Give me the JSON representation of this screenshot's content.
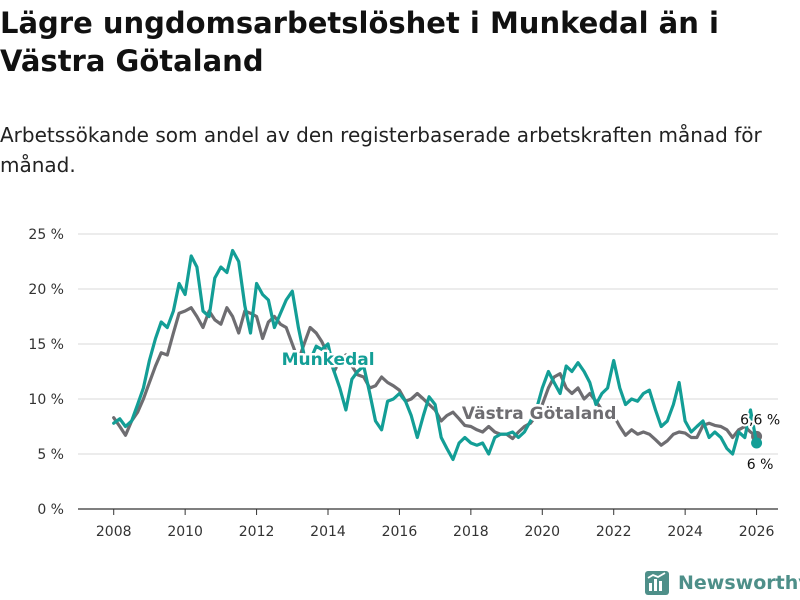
{
  "title": "Lägre ungdomsarbetslöshet i Munkedal än i Västra Götaland",
  "subtitle": "Arbetssökande som andel av den registerbaserade arbetskraften månad för månad.",
  "brand": {
    "name": "Newsworthy",
    "icon": "newsworthy-logo-icon",
    "color": "#4e8f89"
  },
  "colors": {
    "munkedal": "#139e96",
    "vastra": "#6e6d71",
    "grid": "#d9d9d9",
    "axis": "#333333"
  },
  "chart_data": {
    "type": "line",
    "title": "Lägre ungdomsarbetslöshet i Munkedal än i Västra Götaland",
    "xlabel": "",
    "ylabel": "",
    "xlim": [
      2007,
      2026.6
    ],
    "ylim": [
      0,
      25
    ],
    "x_ticks": [
      2008,
      2010,
      2012,
      2014,
      2016,
      2018,
      2020,
      2022,
      2024,
      2026
    ],
    "x_tick_labels": [
      "2008",
      "2010",
      "2012",
      "2014",
      "2016",
      "2018",
      "2020",
      "2022",
      "2024",
      "2026"
    ],
    "y_ticks": [
      0,
      5,
      10,
      15,
      20,
      25
    ],
    "y_tick_labels": [
      "0 %",
      "5 %",
      "10 %",
      "15 %",
      "20 %",
      "25 %"
    ],
    "series": [
      {
        "name": "Västra Götaland",
        "label": "Västra Götaland",
        "color": "#6e6d71",
        "end_value": 6.6,
        "end_label": "6,6 %",
        "points": [
          [
            2008.0,
            8.3
          ],
          [
            2008.17,
            7.5
          ],
          [
            2008.33,
            6.7
          ],
          [
            2008.5,
            8.0
          ],
          [
            2008.67,
            8.8
          ],
          [
            2008.83,
            10.0
          ],
          [
            2009.0,
            11.5
          ],
          [
            2009.17,
            13.0
          ],
          [
            2009.33,
            14.2
          ],
          [
            2009.5,
            14.0
          ],
          [
            2009.67,
            16.0
          ],
          [
            2009.83,
            17.8
          ],
          [
            2010.0,
            18.0
          ],
          [
            2010.17,
            18.3
          ],
          [
            2010.33,
            17.5
          ],
          [
            2010.5,
            16.5
          ],
          [
            2010.67,
            18.0
          ],
          [
            2010.83,
            17.2
          ],
          [
            2011.0,
            16.8
          ],
          [
            2011.17,
            18.3
          ],
          [
            2011.33,
            17.5
          ],
          [
            2011.5,
            16.0
          ],
          [
            2011.67,
            18.0
          ],
          [
            2011.83,
            17.8
          ],
          [
            2012.0,
            17.5
          ],
          [
            2012.17,
            15.5
          ],
          [
            2012.33,
            17.0
          ],
          [
            2012.5,
            17.5
          ],
          [
            2012.67,
            16.8
          ],
          [
            2012.83,
            16.5
          ],
          [
            2013.0,
            15.0
          ],
          [
            2013.17,
            13.5
          ],
          [
            2013.33,
            15.0
          ],
          [
            2013.5,
            16.5
          ],
          [
            2013.67,
            16.0
          ],
          [
            2013.83,
            15.2
          ],
          [
            2014.0,
            14.0
          ],
          [
            2014.17,
            12.5
          ],
          [
            2014.33,
            13.5
          ],
          [
            2014.5,
            14.0
          ],
          [
            2014.67,
            13.0
          ],
          [
            2014.83,
            12.2
          ],
          [
            2015.0,
            12.0
          ],
          [
            2015.17,
            11.0
          ],
          [
            2015.33,
            11.2
          ],
          [
            2015.5,
            12.0
          ],
          [
            2015.67,
            11.5
          ],
          [
            2015.83,
            11.2
          ],
          [
            2016.0,
            10.8
          ],
          [
            2016.17,
            9.8
          ],
          [
            2016.33,
            10.0
          ],
          [
            2016.5,
            10.5
          ],
          [
            2016.67,
            10.0
          ],
          [
            2016.83,
            9.5
          ],
          [
            2017.0,
            9.0
          ],
          [
            2017.17,
            8.0
          ],
          [
            2017.33,
            8.5
          ],
          [
            2017.5,
            8.8
          ],
          [
            2017.67,
            8.2
          ],
          [
            2017.83,
            7.6
          ],
          [
            2018.0,
            7.5
          ],
          [
            2018.17,
            7.2
          ],
          [
            2018.33,
            7.0
          ],
          [
            2018.5,
            7.5
          ],
          [
            2018.67,
            7.0
          ],
          [
            2018.83,
            6.8
          ],
          [
            2019.0,
            6.8
          ],
          [
            2019.17,
            6.4
          ],
          [
            2019.33,
            7.0
          ],
          [
            2019.5,
            7.5
          ],
          [
            2019.67,
            7.8
          ],
          [
            2019.83,
            8.5
          ],
          [
            2020.0,
            9.5
          ],
          [
            2020.17,
            11.0
          ],
          [
            2020.33,
            12.0
          ],
          [
            2020.5,
            12.3
          ],
          [
            2020.67,
            11.0
          ],
          [
            2020.83,
            10.5
          ],
          [
            2021.0,
            11.0
          ],
          [
            2021.17,
            10.0
          ],
          [
            2021.33,
            10.5
          ],
          [
            2021.5,
            9.8
          ],
          [
            2021.67,
            9.0
          ],
          [
            2021.83,
            8.8
          ],
          [
            2022.0,
            8.5
          ],
          [
            2022.17,
            7.5
          ],
          [
            2022.33,
            6.7
          ],
          [
            2022.5,
            7.2
          ],
          [
            2022.67,
            6.8
          ],
          [
            2022.83,
            7.0
          ],
          [
            2023.0,
            6.8
          ],
          [
            2023.17,
            6.3
          ],
          [
            2023.33,
            5.8
          ],
          [
            2023.5,
            6.2
          ],
          [
            2023.67,
            6.8
          ],
          [
            2023.83,
            7.0
          ],
          [
            2024.0,
            6.9
          ],
          [
            2024.17,
            6.5
          ],
          [
            2024.33,
            6.5
          ],
          [
            2024.5,
            7.6
          ],
          [
            2024.67,
            7.8
          ],
          [
            2024.83,
            7.6
          ],
          [
            2025.0,
            7.5
          ],
          [
            2025.17,
            7.2
          ],
          [
            2025.33,
            6.5
          ],
          [
            2025.5,
            7.2
          ],
          [
            2025.67,
            7.5
          ],
          [
            2025.83,
            7.0
          ],
          [
            2026.0,
            6.6
          ]
        ]
      },
      {
        "name": "Munkedal",
        "label": "Munkedal",
        "color": "#139e96",
        "end_value": 6.0,
        "end_label": "6 %",
        "points": [
          [
            2008.0,
            7.8
          ],
          [
            2008.17,
            8.2
          ],
          [
            2008.33,
            7.5
          ],
          [
            2008.5,
            8.0
          ],
          [
            2008.67,
            9.5
          ],
          [
            2008.83,
            11.0
          ],
          [
            2009.0,
            13.5
          ],
          [
            2009.17,
            15.5
          ],
          [
            2009.33,
            17.0
          ],
          [
            2009.5,
            16.5
          ],
          [
            2009.67,
            18.0
          ],
          [
            2009.83,
            20.5
          ],
          [
            2010.0,
            19.5
          ],
          [
            2010.17,
            23.0
          ],
          [
            2010.33,
            22.0
          ],
          [
            2010.5,
            18.0
          ],
          [
            2010.67,
            17.5
          ],
          [
            2010.83,
            21.0
          ],
          [
            2011.0,
            22.0
          ],
          [
            2011.17,
            21.5
          ],
          [
            2011.33,
            23.5
          ],
          [
            2011.5,
            22.5
          ],
          [
            2011.67,
            18.5
          ],
          [
            2011.83,
            16.0
          ],
          [
            2012.0,
            20.5
          ],
          [
            2012.17,
            19.5
          ],
          [
            2012.33,
            19.0
          ],
          [
            2012.5,
            16.5
          ],
          [
            2012.67,
            17.8
          ],
          [
            2012.83,
            19.0
          ],
          [
            2013.0,
            19.8
          ],
          [
            2013.17,
            16.5
          ],
          [
            2013.33,
            14.0
          ],
          [
            2013.5,
            13.5
          ],
          [
            2013.67,
            14.8
          ],
          [
            2013.83,
            14.5
          ],
          [
            2014.0,
            15.0
          ],
          [
            2014.17,
            12.5
          ],
          [
            2014.33,
            11.0
          ],
          [
            2014.5,
            9.0
          ],
          [
            2014.67,
            11.8
          ],
          [
            2014.83,
            12.5
          ],
          [
            2015.0,
            13.0
          ],
          [
            2015.17,
            10.5
          ],
          [
            2015.33,
            8.0
          ],
          [
            2015.5,
            7.2
          ],
          [
            2015.67,
            9.8
          ],
          [
            2015.83,
            10.0
          ],
          [
            2016.0,
            10.5
          ],
          [
            2016.17,
            9.8
          ],
          [
            2016.33,
            8.5
          ],
          [
            2016.5,
            6.5
          ],
          [
            2016.67,
            8.5
          ],
          [
            2016.83,
            10.2
          ],
          [
            2017.0,
            9.5
          ],
          [
            2017.17,
            6.5
          ],
          [
            2017.33,
            5.5
          ],
          [
            2017.5,
            4.5
          ],
          [
            2017.67,
            6.0
          ],
          [
            2017.83,
            6.5
          ],
          [
            2018.0,
            6.0
          ],
          [
            2018.17,
            5.8
          ],
          [
            2018.33,
            6.0
          ],
          [
            2018.5,
            5.0
          ],
          [
            2018.67,
            6.5
          ],
          [
            2018.83,
            6.8
          ],
          [
            2019.0,
            6.8
          ],
          [
            2019.17,
            7.0
          ],
          [
            2019.33,
            6.5
          ],
          [
            2019.5,
            7.0
          ],
          [
            2019.67,
            8.0
          ],
          [
            2019.83,
            9.0
          ],
          [
            2020.0,
            11.0
          ],
          [
            2020.17,
            12.5
          ],
          [
            2020.33,
            11.5
          ],
          [
            2020.5,
            10.5
          ],
          [
            2020.67,
            13.0
          ],
          [
            2020.83,
            12.5
          ],
          [
            2021.0,
            13.3
          ],
          [
            2021.17,
            12.5
          ],
          [
            2021.33,
            11.5
          ],
          [
            2021.5,
            9.5
          ],
          [
            2021.67,
            10.5
          ],
          [
            2021.83,
            11.0
          ],
          [
            2022.0,
            13.5
          ],
          [
            2022.17,
            11.0
          ],
          [
            2022.33,
            9.5
          ],
          [
            2022.5,
            10.0
          ],
          [
            2022.67,
            9.8
          ],
          [
            2022.83,
            10.5
          ],
          [
            2023.0,
            10.8
          ],
          [
            2023.17,
            9.0
          ],
          [
            2023.33,
            7.5
          ],
          [
            2023.5,
            8.0
          ],
          [
            2023.67,
            9.5
          ],
          [
            2023.83,
            11.5
          ],
          [
            2024.0,
            8.0
          ],
          [
            2024.17,
            7.0
          ],
          [
            2024.33,
            7.5
          ],
          [
            2024.5,
            8.0
          ],
          [
            2024.67,
            6.5
          ],
          [
            2024.83,
            7.0
          ],
          [
            2025.0,
            6.5
          ],
          [
            2025.17,
            5.5
          ],
          [
            2025.33,
            5.0
          ],
          [
            2025.5,
            7.0
          ],
          [
            2025.67,
            6.5
          ],
          [
            2025.83,
            9.0
          ],
          [
            2026.0,
            6.0
          ]
        ]
      }
    ]
  }
}
